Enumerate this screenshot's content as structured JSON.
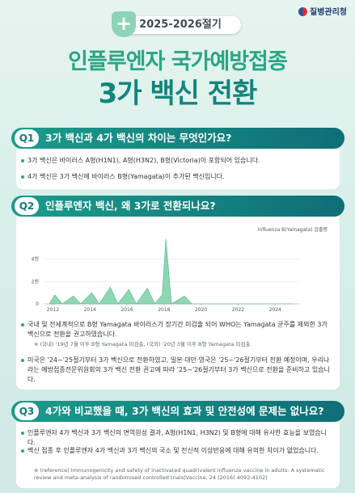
{
  "logo": "질병관리청",
  "badge": "2025-2026절기",
  "title": [
    "인플루엔자 국가예방접종",
    "3가 백신 전환"
  ],
  "q1": {
    "label": "Q1",
    "question": "3가 백신과 4가 백신의 차이는 무엇인가요?",
    "bullets": [
      "3가 백신은 바이러스 A형(H1N1), A형(H3N2), B형(Victoria)이 포함되어 있습니다.",
      "4가 백신은 3가 백신에 바이러스 B형(Yamagata)이 추가된 백신입니다."
    ]
  },
  "q2": {
    "label": "Q2",
    "question": "인플루엔자 백신, 왜 3가로 전환되나요?",
    "chart": {
      "type": "area",
      "legend": "Influenza B(Yamagata) 검출량",
      "color": "#8fd6b4",
      "x": [
        2011.8,
        2012.1,
        2012.5,
        2013.1,
        2013.5,
        2014.1,
        2014.5,
        2015.1,
        2015.5,
        2016.1,
        2016.5,
        2017.1,
        2017.5,
        2017.9,
        2018.1,
        2018.4,
        2019.1,
        2019.5,
        2020,
        2025
      ],
      "values": [
        0,
        800,
        0,
        700,
        0,
        1000,
        0,
        1500,
        0,
        1300,
        0,
        1400,
        0,
        800,
        5800,
        0,
        700,
        0,
        0,
        0
      ],
      "xlim": [
        2011.5,
        2025.3
      ],
      "xticks": [
        2012,
        2014,
        2016,
        2018,
        2020,
        2022,
        2024
      ],
      "ylim": [
        0,
        6500
      ],
      "yticks": [
        0,
        {
          "value": 2000,
          "label": "2천"
        },
        {
          "value": 4000,
          "label": "4천"
        }
      ],
      "grid": true
    },
    "bullets": [
      "국내 및 전세계적으로 B형 Yamagata 바이러스가 장기간 미검출 되어 WHO는 Yamagata 균주를 제외한 3가 백신으로 전환을 권고하였습니다.",
      "미국은 '24~'25절기부터 3가 백신으로 전환하였고, 일본·대만·영국은 '25~'26절기부터 전환 예정이며, 우리나라는 예방접종전문위원회의 3가 백신 전환 권고에 따라 '25~'26절기부터 3가 백신으로 전환을 준비하고 있습니다."
    ],
    "note": "※ (국내) '19년 7월 이후 B형 Yamagata 미검출, (국외) '20년 3월 이후 B형 Yamagata 미검출"
  },
  "q3": {
    "label": "Q3",
    "question": "4가와 비교했을 때, 3가 백신의 효과 및 안전성에 문제는 없나요?",
    "bullets": [
      "인플루엔자 4가 백신과 3가 백신의 면역원성 결과, A형(H1N1, H3N2) 및 B형에 대해 유사한 효능을 보였습니다.",
      "백신 접종 후 인플루엔자 4가 백신과 3가 백신의 국소 및 전신적 이상반응에 대해 유의한 차이가 없었습니다."
    ],
    "note": "※ (reference) Immunogenicity and safety of inactivated quadrivalent influenza vaccine in adults: A systematic review and meta-analysis of randomised controlled trials(Vaccine, 24 (2016) 4092-4102)"
  }
}
